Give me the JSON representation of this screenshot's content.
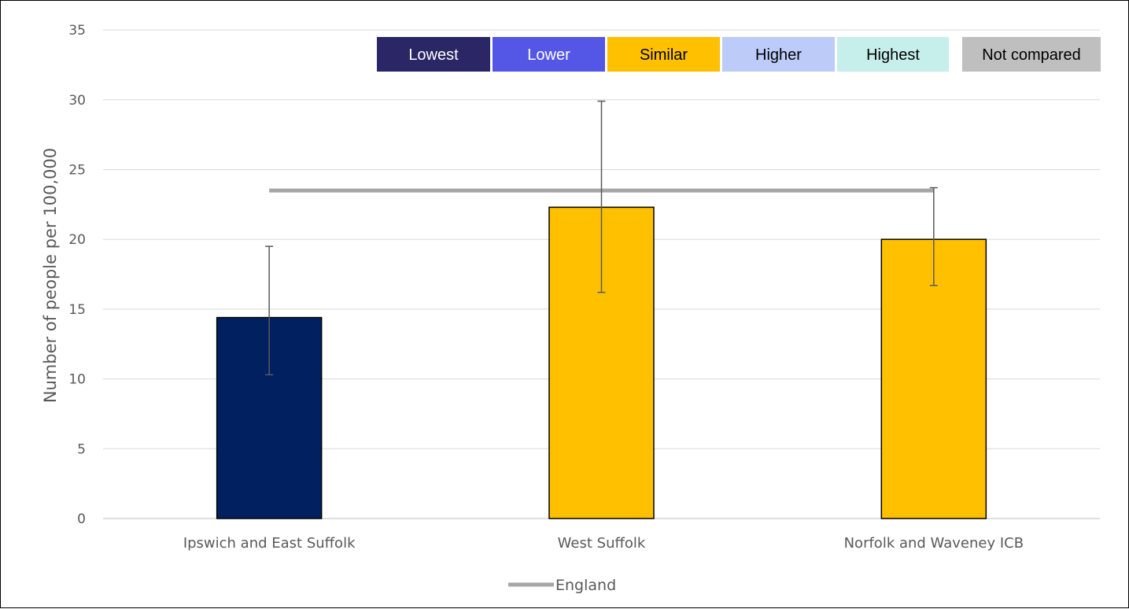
{
  "chart_data": {
    "type": "bar",
    "ylabel": "Number of people per 100,000",
    "ylim": [
      0,
      35
    ],
    "yticks": [
      0,
      5,
      10,
      15,
      20,
      25,
      30,
      35
    ],
    "grid": true,
    "categories": [
      "Ipswich and East Suffolk",
      "West Suffolk",
      "Norfolk and Waveney ICB"
    ],
    "values": [
      14.4,
      22.3,
      20.0
    ],
    "error_low": [
      10.3,
      16.2,
      16.7
    ],
    "error_high": [
      19.5,
      29.9,
      23.7
    ],
    "bar_colors": [
      "#002060",
      "#FFC000",
      "#FFC000"
    ],
    "reference_line": {
      "name": "England",
      "value": 23.5,
      "color": "#A6A6A6"
    },
    "legend_position": "bottom",
    "comparison_key": [
      {
        "label": "Lowest",
        "bg": "#2B2766",
        "fg": "#FFFFFF"
      },
      {
        "label": "Lower",
        "bg": "#5457E6",
        "fg": "#FFFFFF"
      },
      {
        "label": "Similar",
        "bg": "#FFC000",
        "fg": "#000000"
      },
      {
        "label": "Higher",
        "bg": "#BCCBF8",
        "fg": "#000000"
      },
      {
        "label": "Highest",
        "bg": "#C6EFEB",
        "fg": "#000000"
      },
      {
        "label": "Not compared",
        "bg": "#BFBFBF",
        "fg": "#000000"
      }
    ]
  }
}
